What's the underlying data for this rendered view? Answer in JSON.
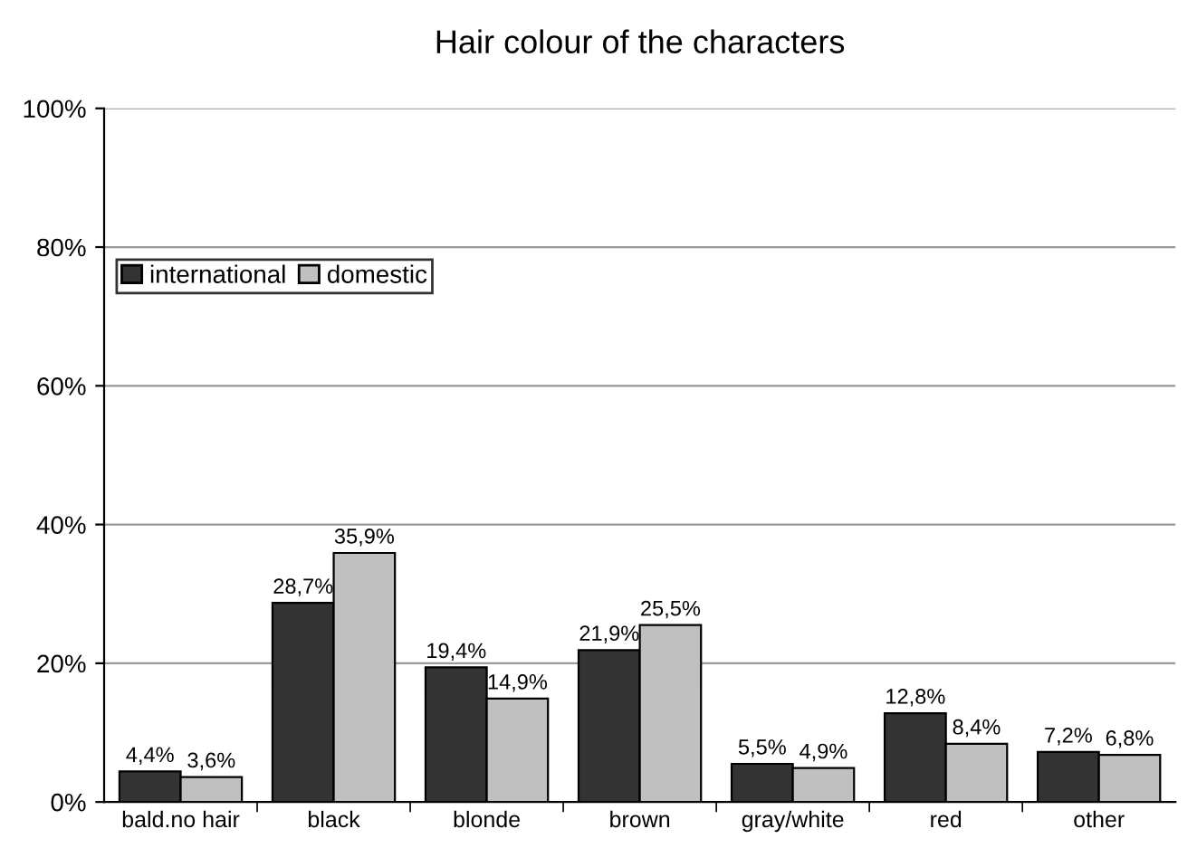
{
  "chart_data": {
    "type": "bar",
    "title": "Hair colour of the characters",
    "categories": [
      "bald.no hair",
      "black",
      "blonde",
      "brown",
      "gray/white",
      "red",
      "other"
    ],
    "series": [
      {
        "name": "international",
        "color": "#333333",
        "values": [
          4.4,
          28.7,
          19.4,
          21.9,
          5.5,
          12.8,
          7.2
        ],
        "value_labels": [
          "4,4%",
          "28,7%",
          "19,4%",
          "21,9%",
          "5,5%",
          "12,8%",
          "7,2%"
        ]
      },
      {
        "name": "domestic",
        "color": "#c0c0c0",
        "values": [
          3.6,
          35.9,
          14.9,
          25.5,
          4.9,
          8.4,
          6.8
        ],
        "value_labels": [
          "3,6%",
          "35,9%",
          "14,9%",
          "25,5%",
          "4,9%",
          "8,4%",
          "6,8%"
        ]
      }
    ],
    "ylim": [
      0,
      100
    ],
    "yticks": [
      {
        "value": 0,
        "label": "0%"
      },
      {
        "value": 20,
        "label": "20%"
      },
      {
        "value": 40,
        "label": "40%"
      },
      {
        "value": 60,
        "label": "60%"
      },
      {
        "value": 80,
        "label": "80%"
      },
      {
        "value": 100,
        "label": "100%"
      }
    ],
    "grid": "y",
    "legend": "top left"
  }
}
